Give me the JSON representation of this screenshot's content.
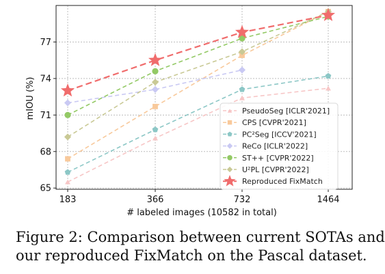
{
  "chart_data": {
    "type": "line",
    "xlabel": "# labeled images (10582 in total)",
    "ylabel": "mIOU (%)",
    "x_categories": [
      "183",
      "366",
      "732",
      "1464"
    ],
    "yticks": [
      65,
      68,
      71,
      74,
      77
    ],
    "ylim": [
      64.9,
      80.0
    ],
    "grid": true,
    "legend_position": "lower-right",
    "series": [
      {
        "name": "PseudoSeg [ICLR'2021]",
        "color": "#f7c6c6",
        "marker": "triangle",
        "values": [
          65.5,
          69.1,
          72.4,
          73.2
        ]
      },
      {
        "name": "CPS [CVPR'2021]",
        "color": "#f8c99b",
        "marker": "square",
        "values": [
          67.4,
          71.7,
          75.9,
          79.5
        ]
      },
      {
        "name": "PC²Seg [ICCV'2021]",
        "color": "#8cc7c6",
        "marker": "pentagon",
        "values": [
          66.3,
          69.8,
          73.1,
          74.2
        ]
      },
      {
        "name": "ReCo [ICLR'2022]",
        "color": "#c9c9f3",
        "marker": "diamond",
        "values": [
          72.0,
          73.1,
          74.7,
          null
        ]
      },
      {
        "name": "ST++ [CVPR'2022]",
        "color": "#93c965",
        "marker": "circle",
        "values": [
          71.0,
          74.6,
          77.3,
          79.1
        ]
      },
      {
        "name": "U²PL [CVPR'2022]",
        "color": "#c9c995",
        "marker": "diamond",
        "values": [
          69.2,
          73.7,
          76.2,
          79.5
        ]
      },
      {
        "name": "Reproduced FixMatch",
        "color": "#f06c6c",
        "marker": "star",
        "values": [
          73.0,
          75.5,
          77.8,
          79.2
        ]
      }
    ]
  },
  "caption": {
    "line1": "Figure 2: Comparison between current SOTAs and",
    "line2": "our reproduced FixMatch on the Pascal dataset."
  }
}
